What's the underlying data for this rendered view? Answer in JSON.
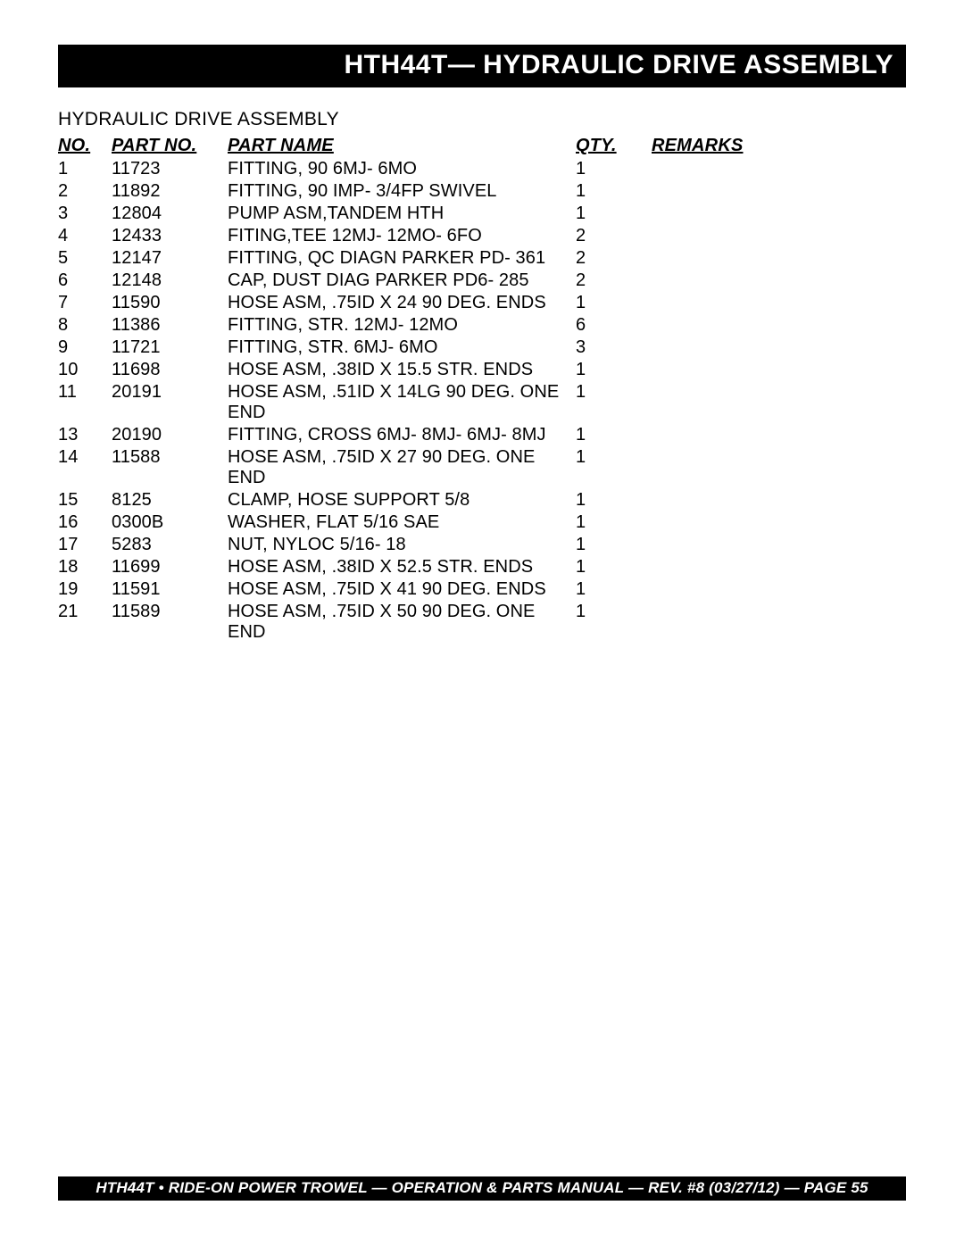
{
  "title_bar": "HTH44T— HYDRAULIC DRIVE ASSEMBLY",
  "subtitle": "HYDRAULIC DRIVE ASSEMBLY",
  "headers": {
    "no": "NO.",
    "part_no": "PART NO.",
    "part_name": "PART NAME",
    "qty": "QTY.",
    "remarks": "REMARKS"
  },
  "rows": [
    {
      "no": "1",
      "part": "11723",
      "name": "FITTING, 90 6MJ- 6MO",
      "qty": "1",
      "rem": ""
    },
    {
      "no": "2",
      "part": "11892",
      "name": "FITTING, 90 IMP- 3/4FP SWIVEL",
      "qty": "1",
      "rem": ""
    },
    {
      "no": "3",
      "part": "12804",
      "name": "PUMP ASM,TANDEM HTH",
      "qty": "1",
      "rem": ""
    },
    {
      "no": "4",
      "part": "12433",
      "name": "FITING,TEE  12MJ- 12MO- 6FO",
      "qty": "2",
      "rem": ""
    },
    {
      "no": "5",
      "part": "12147",
      "name": "FITTING, QC DIAGN PARKER PD- 361",
      "qty": "2",
      "rem": ""
    },
    {
      "no": "6",
      "part": "12148",
      "name": "CAP, DUST DIAG PARKER  PD6- 285",
      "qty": "2",
      "rem": ""
    },
    {
      "no": "7",
      "part": "11590",
      "name": "HOSE ASM, .75ID X 24 90 DEG. ENDS",
      "qty": "1",
      "rem": ""
    },
    {
      "no": "8",
      "part": "11386",
      "name": "FITTING, STR.  12MJ- 12MO",
      "qty": "6",
      "rem": ""
    },
    {
      "no": "9",
      "part": "11721",
      "name": "FITTING, STR.  6MJ- 6MO",
      "qty": "3",
      "rem": ""
    },
    {
      "no": "10",
      "part": "11698",
      "name": "HOSE ASM, .38ID X 15.5 STR. ENDS",
      "qty": "1",
      "rem": ""
    },
    {
      "no": "11",
      "part": "20191",
      "name": "HOSE ASM, .51ID X 14LG 90 DEG. ONE END",
      "qty": "1",
      "rem": ""
    },
    {
      "no": "13",
      "part": "20190",
      "name": "FITTING, CROSS 6MJ- 8MJ- 6MJ-  8MJ",
      "qty": "1",
      "rem": ""
    },
    {
      "no": "14",
      "part": "11588",
      "name": "HOSE ASM, .75ID X 27 90 DEG. ONE END",
      "qty": "1",
      "rem": ""
    },
    {
      "no": "15",
      "part": "8125",
      "name": "CLAMP, HOSE SUPPORT  5/8",
      "qty": "1",
      "rem": ""
    },
    {
      "no": "16",
      "part": "0300B",
      "name": "WASHER, FLAT 5/16 SAE",
      "qty": "1",
      "rem": ""
    },
    {
      "no": "17",
      "part": "5283",
      "name": "NUT, NYLOC 5/16- 18",
      "qty": "1",
      "rem": ""
    },
    {
      "no": "18",
      "part": "11699",
      "name": "HOSE ASM, .38ID X 52.5 STR. ENDS",
      "qty": "1",
      "rem": ""
    },
    {
      "no": "19",
      "part": "11591",
      "name": "HOSE ASM, .75ID X 41 90 DEG. ENDS",
      "qty": "1",
      "rem": ""
    },
    {
      "no": "21",
      "part": "11589",
      "name": "HOSE ASM, .75ID X 50 90 DEG. ONE END",
      "qty": "1",
      "rem": ""
    }
  ],
  "footer": "HTH44T • RIDE-ON POWER TROWEL —  OPERATION & PARTS  MANUAL — REV. #8 (03/27/12) — PAGE 55",
  "colors": {
    "bar_bg": "#000000",
    "bar_fg": "#ffffff",
    "page_bg": "#ffffff",
    "text": "#000000"
  }
}
